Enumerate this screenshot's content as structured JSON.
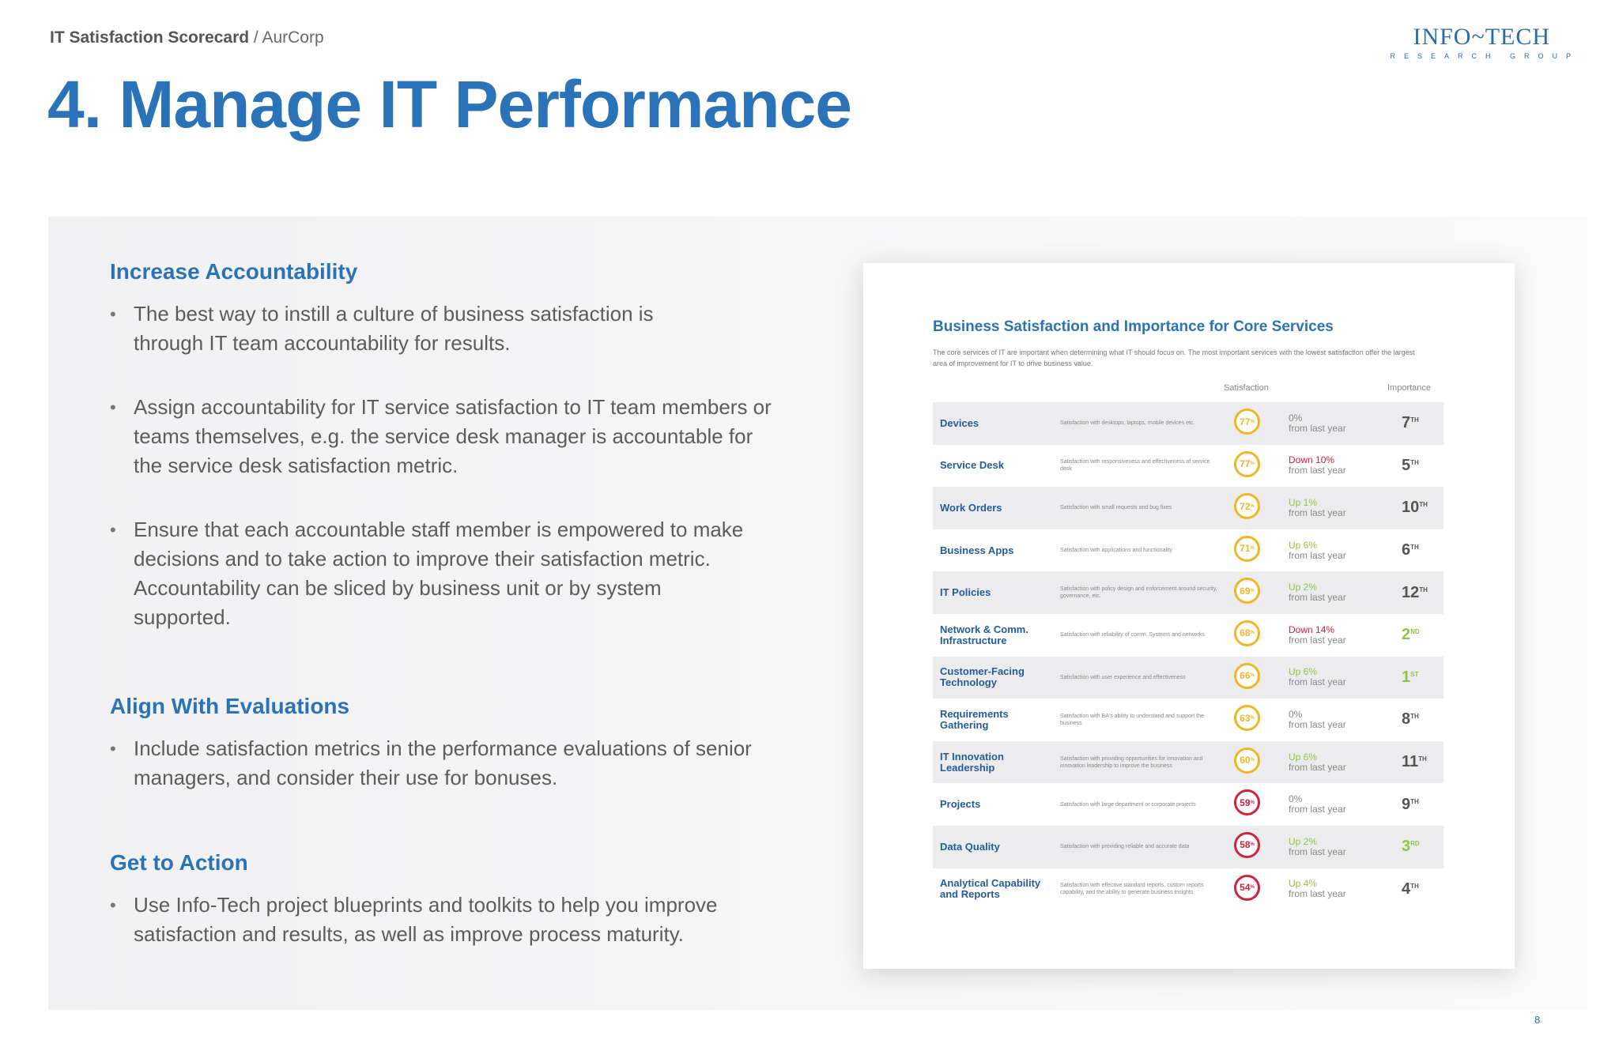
{
  "header": {
    "crumb_strong": "IT Satisfaction Scorecard",
    "crumb_sep": " / ",
    "crumb_org": "AurCorp",
    "logo_main": "INFO~TECH",
    "logo_sub": "RESEARCH GROUP",
    "title": "4. Manage IT Performance"
  },
  "sections": [
    {
      "heading": "Increase Accountability",
      "bullets": [
        "The best way to instill a culture of business satisfaction is through IT team accountability for results.",
        "Assign accountability for IT service satisfaction to IT team members or teams themselves, e.g. the service desk manager is accountable for the service desk satisfaction metric.",
        "Ensure that each accountable staff member is empowered to make decisions and to take action to improve their satisfaction metric. Accountability can be sliced by business unit or by system supported."
      ]
    },
    {
      "heading": "Align With Evaluations",
      "bullets": [
        "Include satisfaction metrics in the performance evaluations of senior managers, and consider their use for bonuses."
      ]
    },
    {
      "heading": "Get to Action",
      "bullets": [
        "Use Info-Tech project blueprints and toolkits to help you improve satisfaction and results, as well as improve process maturity."
      ]
    }
  ],
  "card": {
    "title": "Business Satisfaction and Importance for Core Services",
    "description": "The core services of IT are important when determining what IT should focus on. The most important services with the lowest satisfaction offer the largest area of improvement for IT to drive business value.",
    "col_satisfaction": "Satisfaction",
    "col_importance": "Importance",
    "colors": {
      "yellow": "#f2b624",
      "red": "#d3223c",
      "green": "#8dc63f",
      "down": "#d3223c"
    },
    "rows": [
      {
        "service": "Devices",
        "desc": "Satisfaction with desktops, laptops, mobile devices etc.",
        "score": "77",
        "sup": "%",
        "level": "yellow",
        "change": "0%",
        "trend": "flat",
        "suffix": "from last year",
        "rank": "7",
        "ord": "TH"
      },
      {
        "service": "Service Desk",
        "desc": "Satisfaction with responsiveness and effectiveness of service desk",
        "score": "77",
        "sup": "%",
        "level": "yellow",
        "change": "Down 10%",
        "trend": "down",
        "suffix": "from last year",
        "rank": "5",
        "ord": "TH"
      },
      {
        "service": "Work Orders",
        "desc": "Satisfaction with small requests and bug fixes",
        "score": "72",
        "sup": "%",
        "level": "yellow",
        "change": "Up 1%",
        "trend": "up",
        "suffix": "from last year",
        "rank": "10",
        "ord": "TH"
      },
      {
        "service": "Business Apps",
        "desc": "Satisfaction with applications and functionality",
        "score": "71",
        "sup": "%",
        "level": "yellow",
        "change": "Up 6%",
        "trend": "up",
        "suffix": "from last year",
        "rank": "6",
        "ord": "TH"
      },
      {
        "service": "IT Policies",
        "desc": "Satisfaction with policy design and enforcement around security, governance, etc.",
        "score": "69",
        "sup": "%",
        "level": "yellow",
        "change": "Up 2%",
        "trend": "up",
        "suffix": "from last year",
        "rank": "12",
        "ord": "TH"
      },
      {
        "service": "Network & Comm. Infrastructure",
        "desc": "Satisfaction with reliability of comm. Systems and networks",
        "score": "68",
        "sup": "%",
        "level": "yellow",
        "change": "Down 14%",
        "trend": "down",
        "suffix": "from last year",
        "rank": "2",
        "ord": "ND",
        "rank_color": "green"
      },
      {
        "service": "Customer-Facing Technology",
        "desc": "Satisfaction with user experience and effectiveness",
        "score": "66",
        "sup": "%",
        "level": "yellow",
        "change": "Up 6%",
        "trend": "up",
        "suffix": "from last year",
        "rank": "1",
        "ord": "ST",
        "rank_color": "green"
      },
      {
        "service": "Requirements Gathering",
        "desc": "Satisfaction with BA's ability to understand and support the business",
        "score": "63",
        "sup": "%",
        "level": "yellow",
        "change": "0%",
        "trend": "flat",
        "suffix": "from last year",
        "rank": "8",
        "ord": "TH"
      },
      {
        "service": "IT Innovation Leadership",
        "desc": "Satisfaction with providing opportunities for innovation and innovation leadership to improve the business",
        "score": "60",
        "sup": "%",
        "level": "yellow",
        "change": "Up 6%",
        "trend": "up",
        "suffix": "from last year",
        "rank": "11",
        "ord": "TH"
      },
      {
        "service": "Projects",
        "desc": "Satisfaction with large department or corporate projects",
        "score": "59",
        "sup": "%",
        "level": "red",
        "change": "0%",
        "trend": "flat",
        "suffix": "from last year",
        "rank": "9",
        "ord": "TH"
      },
      {
        "service": "Data Quality",
        "desc": "Satisfaction with providing reliable and accurate data",
        "score": "58",
        "sup": "%",
        "level": "red",
        "change": "Up 2%",
        "trend": "up",
        "suffix": "from last year",
        "rank": "3",
        "ord": "RD",
        "rank_color": "green"
      },
      {
        "service": "Analytical Capability and Reports",
        "desc": "Satisfaction with effective standard reports, custom reports capability, and the ability to generate business insights",
        "score": "54",
        "sup": "%",
        "level": "red",
        "change": "Up 4%",
        "trend": "up",
        "suffix": "from last year",
        "rank": "4",
        "ord": "TH"
      }
    ]
  },
  "page_number": "8"
}
